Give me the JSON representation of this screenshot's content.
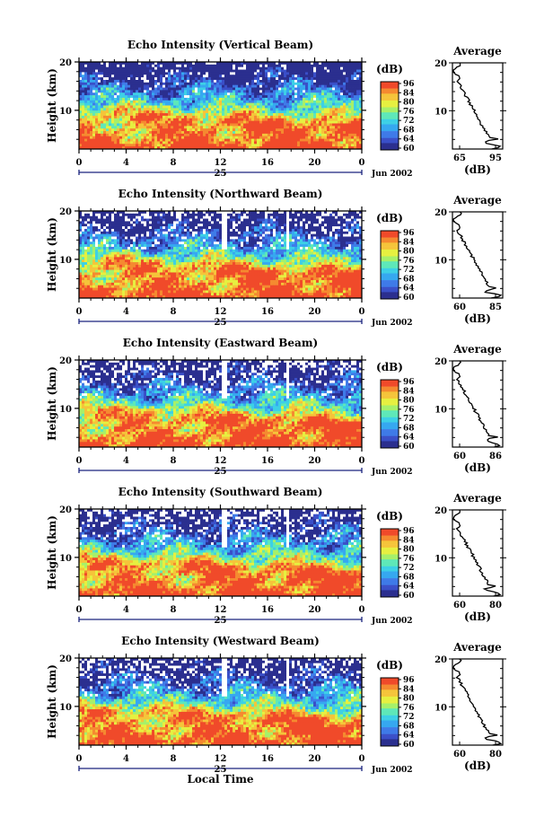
{
  "chart_data": [
    {
      "type": "heatmap",
      "title": "Echo Intensity (Vertical Beam)",
      "xlabel": "",
      "ylabel": "Height (km)",
      "xticks": [
        "0",
        "4",
        "8",
        "12",
        "16",
        "20",
        "0"
      ],
      "yticks": [
        "20",
        "10"
      ],
      "xlim": [
        0,
        24
      ],
      "ylim": [
        2,
        20
      ],
      "day_label": "25",
      "date_label": "Jun 2002",
      "colorbar": {
        "label": "(dB)",
        "ticks": [
          "96",
          "84",
          "80",
          "76",
          "72",
          "68",
          "64",
          "60"
        ]
      },
      "average_profile": {
        "title": "Average",
        "xlabel": "(dB)",
        "xticks": [
          "65",
          "95"
        ],
        "yticks": [
          "20",
          "10"
        ]
      }
    },
    {
      "type": "heatmap",
      "title": "Echo Intensity (Northward Beam)",
      "xlabel": "",
      "ylabel": "Height (km)",
      "xticks": [
        "0",
        "4",
        "8",
        "12",
        "16",
        "20",
        "0"
      ],
      "yticks": [
        "20",
        "10"
      ],
      "xlim": [
        0,
        24
      ],
      "ylim": [
        2,
        20
      ],
      "day_label": "25",
      "date_label": "Jun 2002",
      "colorbar": {
        "label": "(dB)",
        "ticks": [
          "96",
          "84",
          "80",
          "76",
          "72",
          "68",
          "64",
          "60"
        ]
      },
      "average_profile": {
        "title": "Average",
        "xlabel": "(dB)",
        "xticks": [
          "60",
          "85"
        ],
        "yticks": [
          "20",
          "10"
        ]
      }
    },
    {
      "type": "heatmap",
      "title": "Echo Intensity (Eastward Beam)",
      "xlabel": "",
      "ylabel": "Height (km)",
      "xticks": [
        "0",
        "4",
        "8",
        "12",
        "16",
        "20",
        "0"
      ],
      "yticks": [
        "20",
        "10"
      ],
      "xlim": [
        0,
        24
      ],
      "ylim": [
        2,
        20
      ],
      "day_label": "25",
      "date_label": "Jun 2002",
      "colorbar": {
        "label": "(dB)",
        "ticks": [
          "96",
          "84",
          "80",
          "76",
          "72",
          "68",
          "64",
          "60"
        ]
      },
      "average_profile": {
        "title": "Average",
        "xlabel": "(dB)",
        "xticks": [
          "60",
          "86"
        ],
        "yticks": [
          "20",
          "10"
        ]
      }
    },
    {
      "type": "heatmap",
      "title": "Echo Intensity (Southward Beam)",
      "xlabel": "",
      "ylabel": "Height (km)",
      "xticks": [
        "0",
        "4",
        "8",
        "12",
        "16",
        "20",
        "0"
      ],
      "yticks": [
        "20",
        "10"
      ],
      "xlim": [
        0,
        24
      ],
      "ylim": [
        2,
        20
      ],
      "day_label": "25",
      "date_label": "Jun 2002",
      "colorbar": {
        "label": "(dB)",
        "ticks": [
          "96",
          "84",
          "80",
          "76",
          "72",
          "68",
          "64",
          "60"
        ]
      },
      "average_profile": {
        "title": "Average",
        "xlabel": "(dB)",
        "xticks": [
          "60",
          "80"
        ],
        "yticks": [
          "20",
          "10"
        ]
      }
    },
    {
      "type": "heatmap",
      "title": "Echo Intensity (Westward Beam)",
      "xlabel": "Local Time",
      "ylabel": "Height (km)",
      "xticks": [
        "0",
        "4",
        "8",
        "12",
        "16",
        "20",
        "0"
      ],
      "yticks": [
        "20",
        "10"
      ],
      "xlim": [
        0,
        24
      ],
      "ylim": [
        2,
        20
      ],
      "day_label": "25",
      "date_label": "Jun 2002",
      "colorbar": {
        "label": "(dB)",
        "ticks": [
          "96",
          "84",
          "80",
          "76",
          "72",
          "68",
          "64",
          "60"
        ]
      },
      "average_profile": {
        "title": "Average",
        "xlabel": "(dB)",
        "xticks": [
          "60",
          "80"
        ],
        "yticks": [
          "20",
          "10"
        ]
      }
    }
  ],
  "palette": {
    "colormap": [
      "#2b2f8f",
      "#3a4fc8",
      "#3f7be8",
      "#36a8f0",
      "#3dd0e6",
      "#5ee8b8",
      "#a6f06a",
      "#e6f040",
      "#f5c43a",
      "#f58a30",
      "#f04a2a"
    ],
    "background": "#ffffff",
    "line": "#000000"
  }
}
